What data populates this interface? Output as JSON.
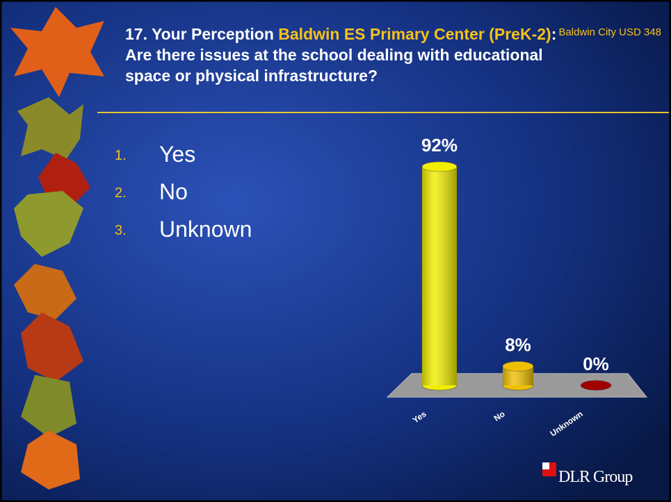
{
  "header": {
    "title_lead": "17. Your Perception ",
    "title_highlight": "Baldwin ES Primary Center (PreK-2)",
    "title_rest": ": Are there issues at the school dealing with educational space or physical infrastructure?",
    "organization": "Baldwin City USD 348"
  },
  "options": [
    {
      "number": "1.",
      "label": "Yes"
    },
    {
      "number": "2.",
      "label": "No"
    },
    {
      "number": "3.",
      "label": "Unknown"
    }
  ],
  "chart_data": {
    "type": "bar",
    "categories": [
      "Yes",
      "No",
      "Unknown"
    ],
    "values": [
      92,
      8,
      0
    ],
    "value_labels": [
      "92%",
      "8%",
      "0%"
    ],
    "colors": [
      "#f2ee00",
      "#f0c000",
      "#a00000"
    ]
  },
  "logo": "DLR Group"
}
